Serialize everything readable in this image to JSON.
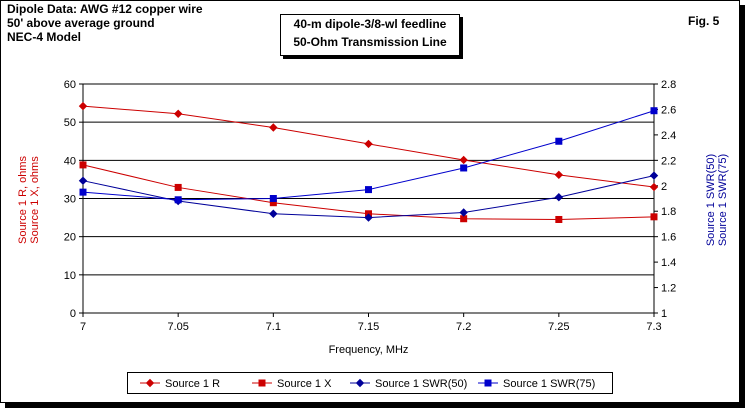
{
  "header": {
    "line1": "Dipole Data:  AWG #12 copper wire",
    "line2": "50' above average ground",
    "line3": "NEC-4 Model",
    "fig": "Fig. 5"
  },
  "title_box": {
    "line1": "40-m dipole-3/8-wl feedline",
    "line2": "50-Ohm Transmission Line"
  },
  "chart_data": {
    "type": "line",
    "x": [
      7,
      7.05,
      7.1,
      7.15,
      7.2,
      7.25,
      7.3
    ],
    "xlabel": "Frequency, MHz",
    "x_ticks": [
      "7",
      "7.05",
      "7.1",
      "7.15",
      "7.2",
      "7.25",
      "7.3"
    ],
    "xlim": [
      7,
      7.3
    ],
    "ylabel_left": [
      "Source 1 R,  ohms",
      "Source 1 X,  ohms"
    ],
    "ylim_left": [
      0,
      60
    ],
    "y_ticks_left": [
      "0",
      "10",
      "20",
      "30",
      "40",
      "50",
      "60"
    ],
    "ylabel_right": [
      "Source 1 SWR(50)",
      "Source 1 SWR(75)"
    ],
    "ylim_right": [
      1,
      2.8
    ],
    "y_ticks_right": [
      "1",
      "1.2",
      "1.4",
      "1.6",
      "1.8",
      "2",
      "2.2",
      "2.4",
      "2.6",
      "2.8"
    ],
    "grid": "horizontal",
    "legend_position": "bottom",
    "series": [
      {
        "name": "Source 1 R",
        "axis": "left",
        "color": "#cc0000",
        "marker": "diamond",
        "values": [
          54.2,
          52.2,
          48.6,
          44.3,
          40.1,
          36.2,
          33.0
        ]
      },
      {
        "name": "Source 1 X",
        "axis": "left",
        "color": "#cc0000",
        "marker": "square",
        "values": [
          38.8,
          32.9,
          28.9,
          26.0,
          24.7,
          24.5,
          25.2
        ]
      },
      {
        "name": "Source 1 SWR(50)",
        "axis": "right",
        "color": "#000099",
        "marker": "diamond",
        "values": [
          2.04,
          1.88,
          1.78,
          1.75,
          1.79,
          1.91,
          2.08
        ]
      },
      {
        "name": "Source 1 SWR(75)",
        "axis": "right",
        "color": "#0000cc",
        "marker": "square",
        "values": [
          1.95,
          1.89,
          1.9,
          1.97,
          2.14,
          2.35,
          2.59
        ]
      }
    ]
  }
}
